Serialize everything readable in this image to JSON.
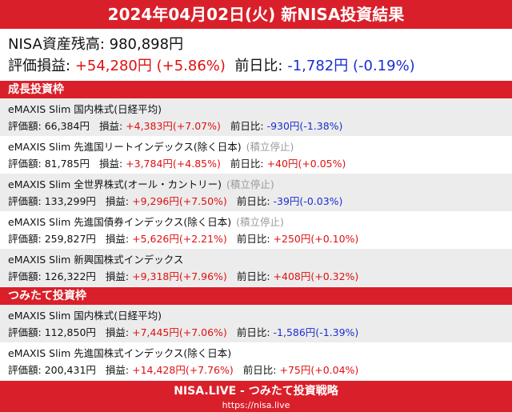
{
  "header": {
    "title": "2024年04月02日(火) 新NISA投資結果"
  },
  "summary": {
    "balance_label": "NISA資産残高:",
    "balance": "980,898円",
    "profit_label": "評価損益:",
    "profit": "+54,280円",
    "profit_pct": "(+5.86%)",
    "day_label": "前日比:",
    "day": "-1,782円",
    "day_pct": "(-0.19%)"
  },
  "sections": [
    {
      "title": "成長投資枠",
      "funds": [
        {
          "name": "eMAXIS Slim 国内株式(日経平均)",
          "valuation_label": "評価額:",
          "valuation": "66,384円",
          "profit_label": "損益:",
          "profit": "+4,383円(+7.07%)",
          "day_label": "前日比:",
          "day": "-930円(-1.38%)"
        },
        {
          "name": "eMAXIS Slim 先進国リートインデックス(除く日本)",
          "note": "(積立停止)",
          "valuation_label": "評価額:",
          "valuation": "81,785円",
          "profit_label": "損益:",
          "profit": "+3,784円(+4.85%)",
          "day_label": "前日比:",
          "day": "+40円(+0.05%)"
        },
        {
          "name": "eMAXIS Slim 全世界株式(オール・カントリー)",
          "note": "(積立停止)",
          "valuation_label": "評価額:",
          "valuation": "133,299円",
          "profit_label": "損益:",
          "profit": "+9,296円(+7.50%)",
          "day_label": "前日比:",
          "day": "-39円(-0.03%)"
        },
        {
          "name": "eMAXIS Slim 先進国債券インデックス(除く日本)",
          "note": "(積立停止)",
          "valuation_label": "評価額:",
          "valuation": "259,827円",
          "profit_label": "損益:",
          "profit": "+5,626円(+2.21%)",
          "day_label": "前日比:",
          "day": "+250円(+0.10%)"
        },
        {
          "name": "eMAXIS Slim 新興国株式インデックス",
          "valuation_label": "評価額:",
          "valuation": "126,322円",
          "profit_label": "損益:",
          "profit": "+9,318円(+7.96%)",
          "day_label": "前日比:",
          "day": "+408円(+0.32%)"
        }
      ]
    },
    {
      "title": "つみたて投資枠",
      "funds": [
        {
          "name": "eMAXIS Slim 国内株式(日経平均)",
          "valuation_label": "評価額:",
          "valuation": "112,850円",
          "profit_label": "損益:",
          "profit": "+7,445円(+7.06%)",
          "day_label": "前日比:",
          "day": "-1,586円(-1.39%)"
        },
        {
          "name": "eMAXIS Slim 先進国株式インデックス(除く日本)",
          "valuation_label": "評価額:",
          "valuation": "200,431円",
          "profit_label": "損益:",
          "profit": "+14,428円(+7.76%)",
          "day_label": "前日比:",
          "day": "+75円(+0.04%)"
        }
      ]
    }
  ],
  "footer": {
    "title": "NISA.LIVE - つみたて投資戦略",
    "url": "https://nisa.live"
  }
}
